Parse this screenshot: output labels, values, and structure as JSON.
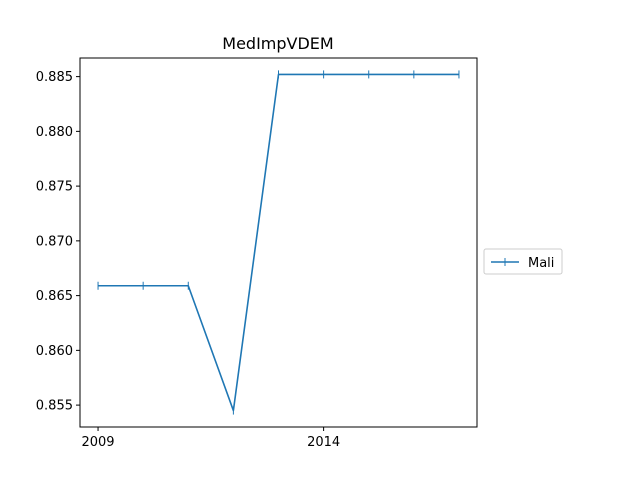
{
  "chart_data": {
    "type": "line",
    "title": "MedImpVDEM",
    "xlabel": "",
    "ylabel": "",
    "x": [
      2009,
      2010,
      2011,
      2012,
      2013,
      2014,
      2015,
      2016,
      2017
    ],
    "series": [
      {
        "name": "Mali",
        "values": [
          0.8659,
          0.8659,
          0.8659,
          0.8545,
          0.8852,
          0.8852,
          0.8852,
          0.8852,
          0.8852
        ],
        "color": "#1f77b4",
        "marker": "|"
      }
    ],
    "xticks": [
      2009,
      2014
    ],
    "xtick_labels": [
      "2009",
      "2014"
    ],
    "yticks": [
      0.855,
      0.86,
      0.865,
      0.87,
      0.875,
      0.88,
      0.885
    ],
    "ytick_labels": [
      "0.855",
      "0.860",
      "0.865",
      "0.870",
      "0.875",
      "0.880",
      "0.885"
    ],
    "xlim": [
      2008.6,
      2017.4
    ],
    "ylim": [
      0.853,
      0.8867
    ],
    "grid": false,
    "legend": {
      "placement": "center-right-outside",
      "entries": [
        "Mali"
      ]
    }
  }
}
